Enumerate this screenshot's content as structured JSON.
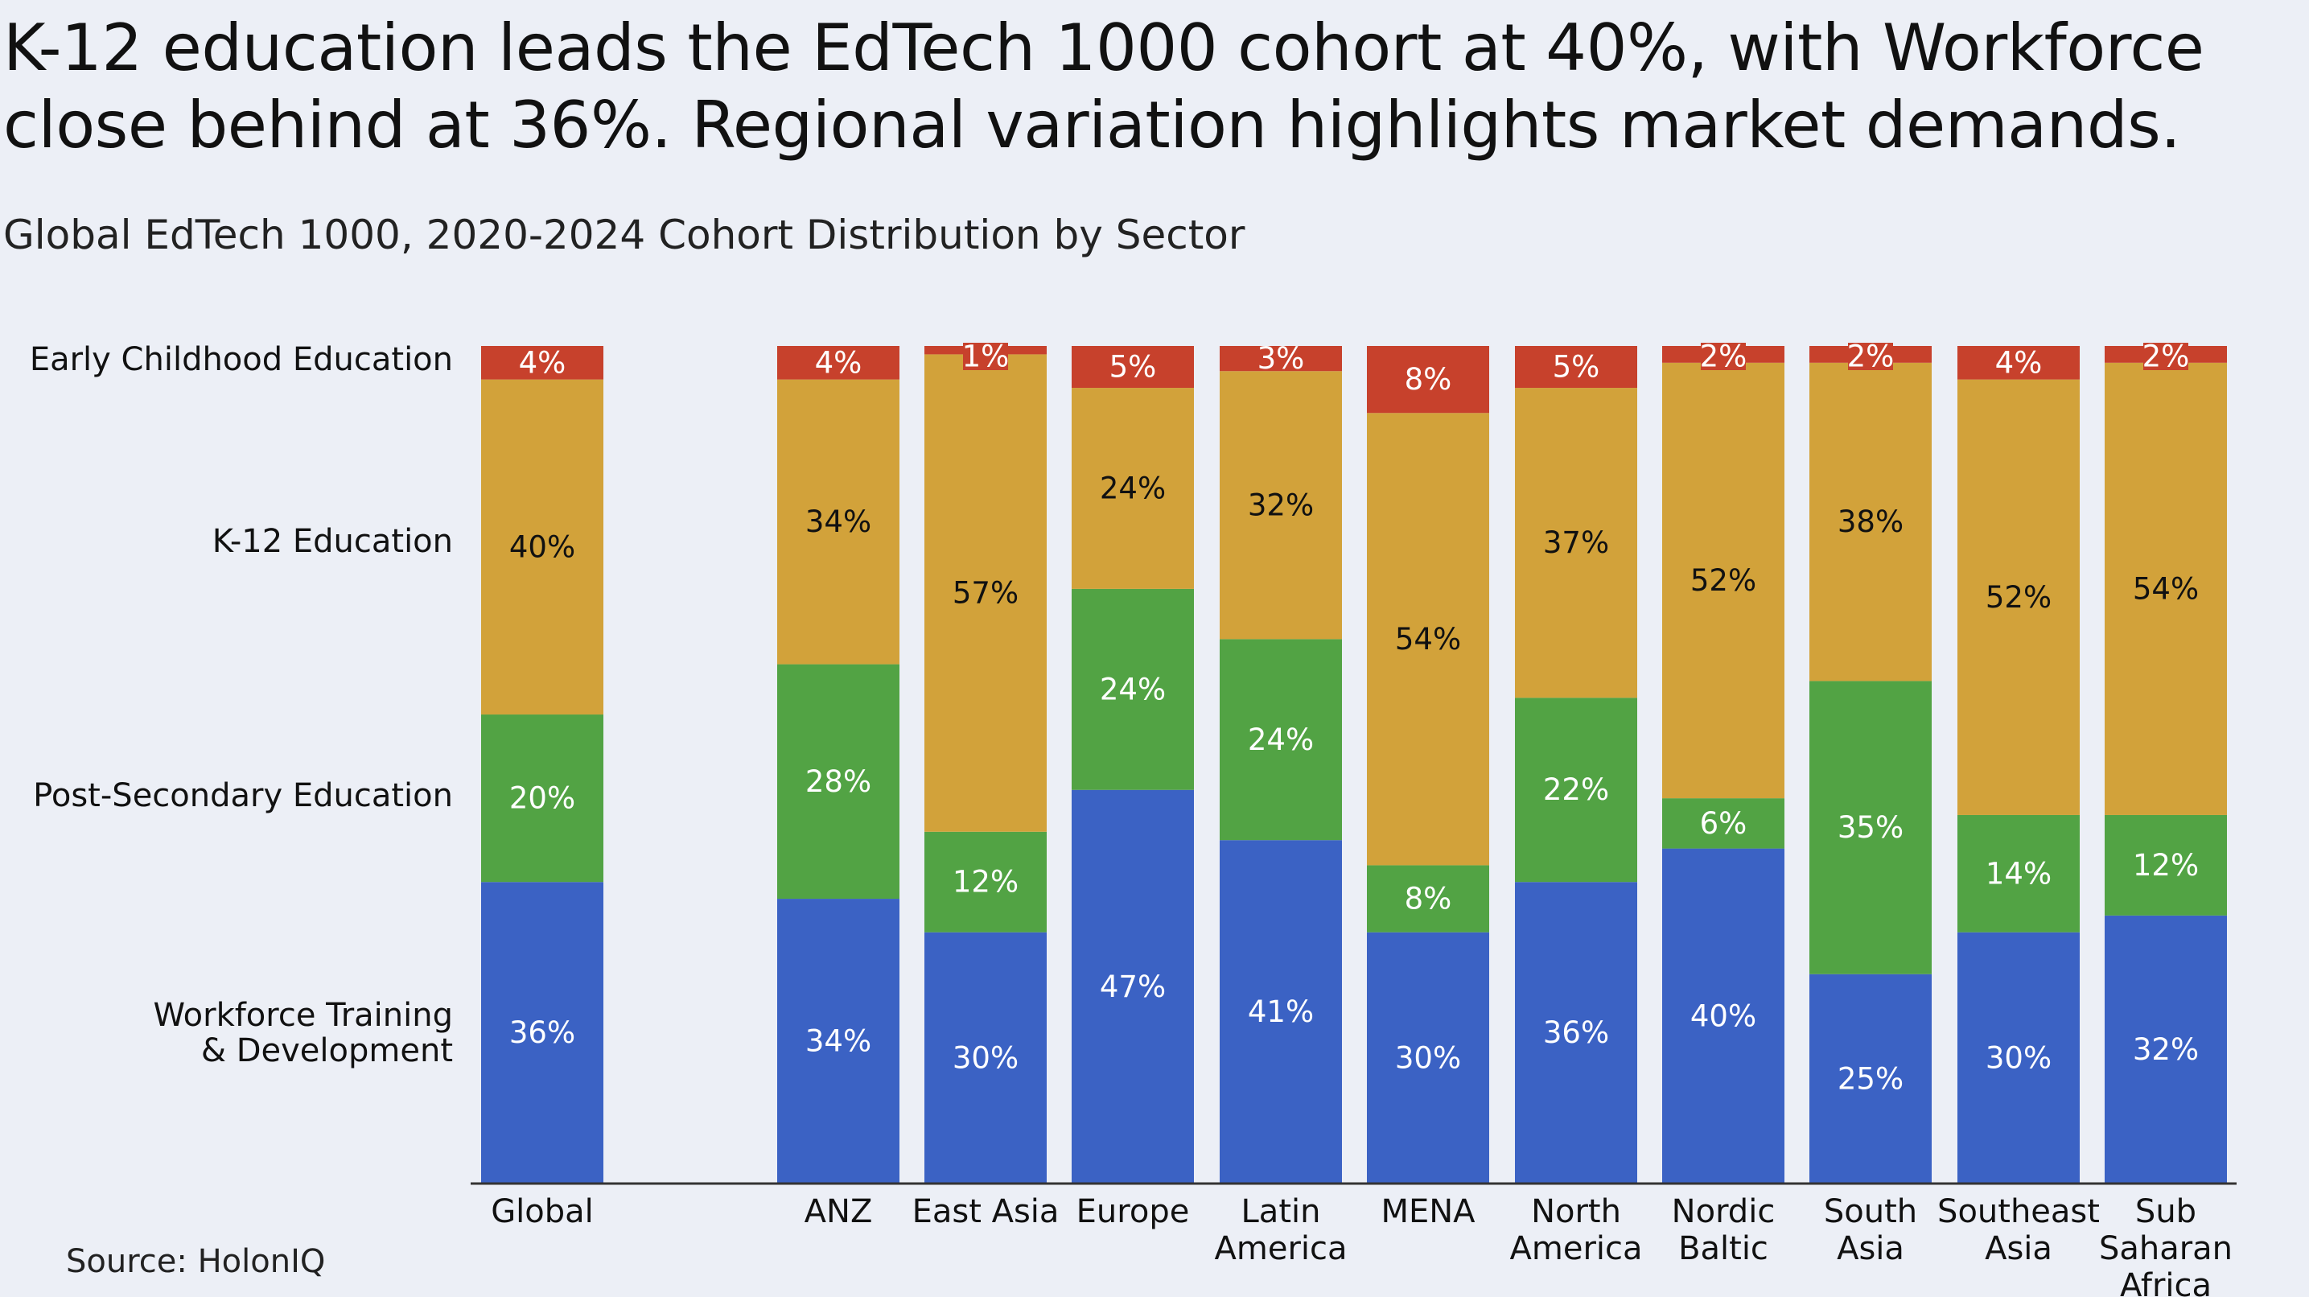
{
  "headline": "K-12 education leads the EdTech 1000 cohort at 40%, with Workforce close behind at 36%. Regional variation highlights market demands.",
  "subtitle": "Global EdTech 1000, 2020-2024 Cohort Distribution by Sector",
  "source": "Source: HolonIQ",
  "colors": {
    "background": "#eceff6",
    "Early Childhood Education": "#c7412c",
    "K-12 Education": "#d2a23a",
    "Post-Secondary Education": "#52a344",
    "Workforce Training & Development": "#3b62c4"
  },
  "chart_data": {
    "type": "bar",
    "stacked": true,
    "percent_stacked": true,
    "categories": [
      [
        "Global"
      ],
      [
        "ANZ"
      ],
      [
        "East Asia"
      ],
      [
        "Europe"
      ],
      [
        "Latin",
        "America"
      ],
      [
        "MENA"
      ],
      [
        "North",
        "America"
      ],
      [
        "Nordic",
        "Baltic"
      ],
      [
        "South",
        "Asia"
      ],
      [
        "Southeast",
        "Asia"
      ],
      [
        "Sub",
        "Saharan",
        "Africa"
      ]
    ],
    "row_labels": [
      [
        "Early Childhood Education"
      ],
      [
        "K-12 Education"
      ],
      [
        "Post-Secondary Education"
      ],
      [
        "Workforce Training",
        "& Development"
      ]
    ],
    "series": [
      {
        "name": "Workforce Training & Development",
        "values": [
          36,
          34,
          30,
          47,
          41,
          30,
          36,
          40,
          25,
          30,
          32
        ],
        "labels": [
          "36%",
          "34%",
          "30%",
          "47%",
          "41%",
          "30%",
          "36%",
          "40%",
          "25%",
          "30%",
          "32%"
        ]
      },
      {
        "name": "Post-Secondary Education",
        "values": [
          20,
          28,
          12,
          24,
          24,
          8,
          22,
          6,
          35,
          14,
          12
        ],
        "labels": [
          "20%",
          "28%",
          "12%",
          "24%",
          "24%",
          "8%",
          "22%",
          "6%",
          "35%",
          "14%",
          "12%"
        ]
      },
      {
        "name": "K-12 Education",
        "values": [
          40,
          34,
          57,
          24,
          32,
          54,
          37,
          52,
          38,
          52,
          54
        ],
        "labels": [
          "40%",
          "34%",
          "57%",
          "24%",
          "32%",
          "54%",
          "37%",
          "52%",
          "38%",
          "52%",
          "54%"
        ]
      },
      {
        "name": "Early Childhood Education",
        "values": [
          4,
          4,
          1,
          5,
          3,
          8,
          5,
          2,
          2,
          4,
          2
        ],
        "labels": [
          "4%",
          "4%",
          "1%",
          "5%",
          "3%",
          "8%",
          "5%",
          "2%",
          "2%",
          "4%",
          "2%"
        ]
      }
    ],
    "ylim": [
      0,
      100
    ],
    "grid": false,
    "legend": "none"
  }
}
